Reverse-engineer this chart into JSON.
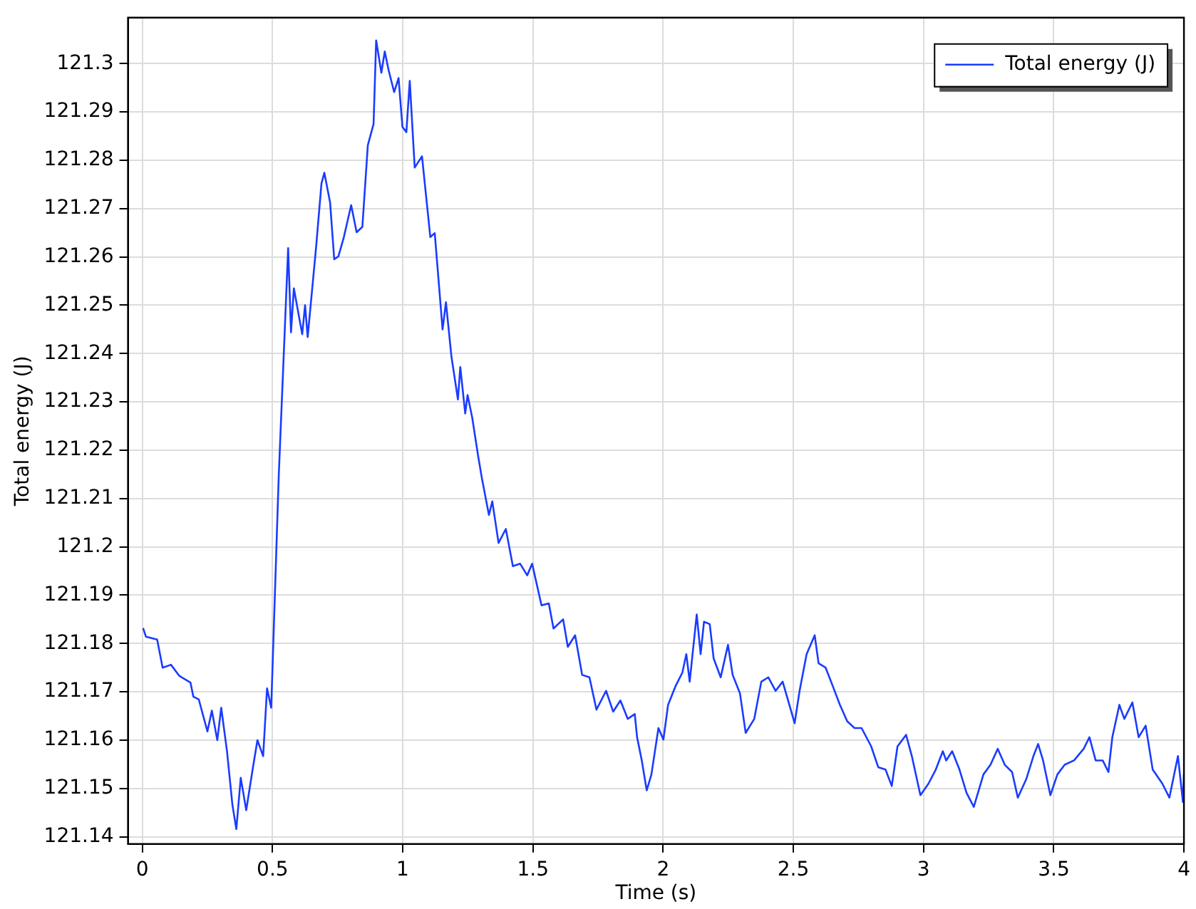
{
  "chart_data": {
    "type": "line",
    "xlabel": "Time (s)",
    "ylabel": "Total energy (J)",
    "xlim": [
      -0.055,
      4
    ],
    "ylim": [
      121.1385,
      121.3095
    ],
    "xticks": [
      0,
      0.5,
      1,
      1.5,
      2,
      2.5,
      3,
      3.5,
      4
    ],
    "yticks": [
      121.14,
      121.15,
      121.16,
      121.17,
      121.18,
      121.19,
      121.2,
      121.21,
      121.22,
      121.23,
      121.24,
      121.25,
      121.26,
      121.27,
      121.28,
      121.29,
      121.3
    ],
    "grid": true,
    "legend": "top right",
    "marker": "none",
    "line_style": "solid",
    "series": [
      {
        "name": "Total energy (J)",
        "color": "#1a3cff",
        "x": [
          0.003,
          0.014,
          0.057,
          0.078,
          0.11,
          0.142,
          0.185,
          0.196,
          0.217,
          0.25,
          0.267,
          0.288,
          0.303,
          0.325,
          0.346,
          0.361,
          0.378,
          0.399,
          0.425,
          0.442,
          0.464,
          0.479,
          0.495,
          0.524,
          0.56,
          0.571,
          0.582,
          0.614,
          0.625,
          0.635,
          0.667,
          0.688,
          0.699,
          0.721,
          0.737,
          0.753,
          0.774,
          0.802,
          0.823,
          0.845,
          0.866,
          0.888,
          0.898,
          0.918,
          0.931,
          0.946,
          0.967,
          0.984,
          0.999,
          1.014,
          1.027,
          1.046,
          1.074,
          1.106,
          1.123,
          1.153,
          1.166,
          1.187,
          1.212,
          1.221,
          1.24,
          1.249,
          1.267,
          1.289,
          1.304,
          1.331,
          1.344,
          1.368,
          1.396,
          1.423,
          1.451,
          1.478,
          1.497,
          1.533,
          1.561,
          1.579,
          1.616,
          1.634,
          1.662,
          1.689,
          1.717,
          1.744,
          1.781,
          1.808,
          1.836,
          1.864,
          1.891,
          1.9,
          1.918,
          1.937,
          1.955,
          1.982,
          2.001,
          2.019,
          2.047,
          2.074,
          2.089,
          2.102,
          2.129,
          2.144,
          2.157,
          2.179,
          2.194,
          2.221,
          2.249,
          2.267,
          2.295,
          2.317,
          2.35,
          2.377,
          2.404,
          2.432,
          2.459,
          2.505,
          2.524,
          2.551,
          2.582,
          2.597,
          2.624,
          2.652,
          2.679,
          2.707,
          2.735,
          2.762,
          2.799,
          2.826,
          2.854,
          2.878,
          2.9,
          2.933,
          2.955,
          2.988,
          3.019,
          3.047,
          3.074,
          3.087,
          3.11,
          3.138,
          3.165,
          3.193,
          3.23,
          3.257,
          3.285,
          3.312,
          3.34,
          3.362,
          3.395,
          3.422,
          3.44,
          3.459,
          3.487,
          3.514,
          3.542,
          3.578,
          3.615,
          3.637,
          3.661,
          3.688,
          3.71,
          3.725,
          3.752,
          3.771,
          3.802,
          3.826,
          3.853,
          3.88,
          3.917,
          3.944,
          3.977,
          3.996,
          4.0
        ],
        "values": [
          121.1832,
          121.1814,
          121.1808,
          121.175,
          121.1756,
          121.1733,
          121.1719,
          121.169,
          121.1684,
          121.1618,
          121.1661,
          121.16,
          121.1667,
          121.1578,
          121.1466,
          121.1416,
          121.1522,
          121.1455,
          121.1544,
          121.16,
          121.1567,
          121.1707,
          121.1667,
          121.2148,
          121.2618,
          121.2444,
          121.2535,
          121.244,
          121.25,
          121.2434,
          121.2618,
          121.2752,
          121.2774,
          121.2713,
          121.2595,
          121.2601,
          121.2641,
          121.2707,
          121.2651,
          121.2662,
          121.2831,
          121.2875,
          121.3048,
          121.2981,
          121.3025,
          121.2986,
          121.2941,
          121.297,
          121.2869,
          121.2858,
          121.2964,
          121.2785,
          121.2808,
          121.2641,
          121.2649,
          121.245,
          121.2506,
          121.2394,
          121.2305,
          121.2372,
          121.2276,
          121.2314,
          121.2267,
          121.219,
          121.2142,
          121.2066,
          121.2094,
          121.2008,
          121.2037,
          121.196,
          121.1965,
          121.1941,
          121.1965,
          121.1879,
          121.1883,
          121.1831,
          121.185,
          121.1793,
          121.1817,
          121.1735,
          121.173,
          121.1663,
          121.1702,
          121.1659,
          121.1682,
          121.1644,
          121.1654,
          121.1606,
          121.1558,
          121.1496,
          121.1529,
          121.1625,
          121.1601,
          121.1673,
          121.1711,
          121.174,
          121.1778,
          121.1721,
          121.186,
          121.1778,
          121.1845,
          121.184,
          121.1769,
          121.173,
          121.1797,
          121.1735,
          121.1697,
          121.1615,
          121.1644,
          121.1721,
          121.173,
          121.1702,
          121.1721,
          121.1635,
          121.1702,
          121.1778,
          121.1817,
          121.1759,
          121.175,
          121.1711,
          121.1673,
          121.1639,
          121.1625,
          121.1625,
          121.1587,
          121.1544,
          121.1539,
          121.1505,
          121.1587,
          121.1611,
          121.1567,
          121.1486,
          121.151,
          121.1539,
          121.1577,
          121.1558,
          121.1577,
          121.1539,
          121.1491,
          121.1462,
          121.1529,
          121.1549,
          121.1582,
          121.1549,
          121.1534,
          121.1481,
          121.152,
          121.1567,
          121.1592,
          121.1558,
          121.1486,
          121.1529,
          121.1549,
          121.1558,
          121.1582,
          121.1606,
          121.1558,
          121.1558,
          121.1534,
          121.1606,
          121.1673,
          121.1644,
          121.1678,
          121.1606,
          121.163,
          121.1539,
          121.151,
          121.1481,
          121.1567,
          121.1472,
          121.1529
        ]
      }
    ]
  }
}
